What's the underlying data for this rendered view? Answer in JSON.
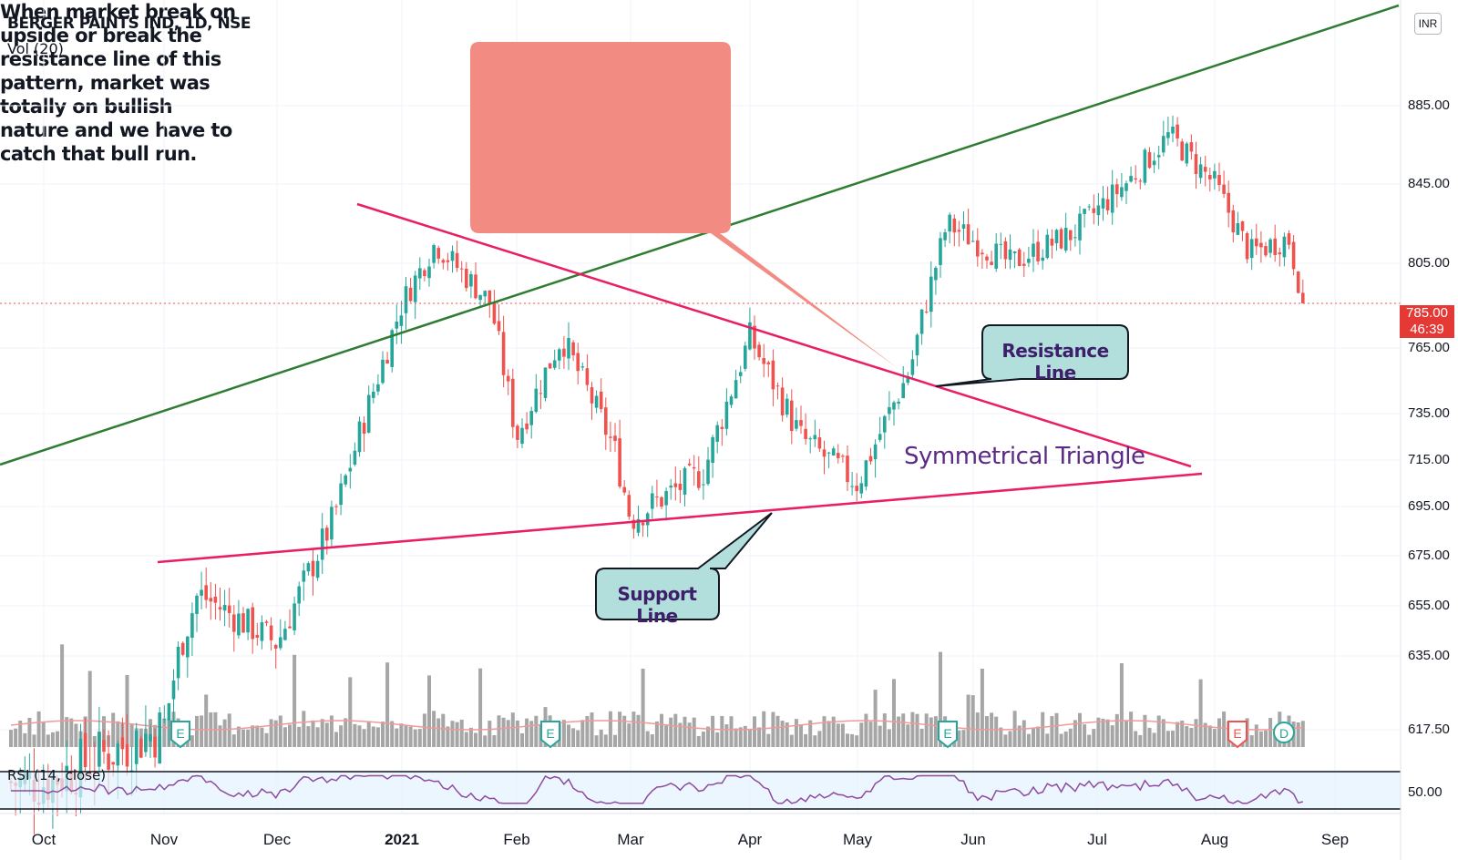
{
  "header": {
    "title": "BERGER PAINTS IND, 1D, NSE",
    "volume_label": "Vol (20)",
    "currency": "INR"
  },
  "price_tag": {
    "price": "785.00",
    "countdown": "46:39"
  },
  "annotations": {
    "note": "When market break on upside or break the resistance line of this pattern, market was totally on bullish nature and we have to catch that bull run.",
    "resistance": "Resistance Line",
    "support": "Support Line",
    "pattern": "Symmetrical Triangle"
  },
  "rsi": {
    "title": "RSI (14, close)",
    "level_label": "50.00"
  },
  "event_markers": [
    "E",
    "E",
    "E",
    "E",
    "D"
  ],
  "colors": {
    "up": "#26a69a",
    "down": "#ef5350",
    "trend_green": "#2e7d32",
    "triangle_pink": "#e91e63",
    "note_bg": "#f28b82",
    "tag_bg": "#b2dfdb",
    "rsi_line": "#8e4b9e",
    "volume_bar": "#a6a6a6",
    "price_tag": "#e53935"
  },
  "chart_data": {
    "type": "candlestick",
    "symbol": "BERGER PAINTS IND",
    "interval": "1D",
    "exchange": "NSE",
    "y_axis": {
      "ticks": [
        "617.50",
        "635.00",
        "655.00",
        "675.00",
        "695.00",
        "715.00",
        "735.00",
        "765.00",
        "785.00",
        "805.00",
        "845.00",
        "885.00"
      ]
    },
    "x_axis": {
      "ticks": [
        "Oct",
        "Nov",
        "Dec",
        "2021",
        "Feb",
        "Mar",
        "Apr",
        "May",
        "Jun",
        "Jul",
        "Aug",
        "Sep"
      ]
    },
    "last_price": 785.0,
    "approx_close_path": [
      {
        "date": "2020-10-01",
        "close": 605
      },
      {
        "date": "2020-11-01",
        "close": 618
      },
      {
        "date": "2020-11-10",
        "close": 660
      },
      {
        "date": "2020-12-01",
        "close": 640
      },
      {
        "date": "2020-12-15",
        "close": 690
      },
      {
        "date": "2021-01-01",
        "close": 785
      },
      {
        "date": "2021-01-10",
        "close": 815
      },
      {
        "date": "2021-01-25",
        "close": 785
      },
      {
        "date": "2021-02-01",
        "close": 725
      },
      {
        "date": "2021-02-12",
        "close": 770
      },
      {
        "date": "2021-02-25",
        "close": 720
      },
      {
        "date": "2021-03-01",
        "close": 690
      },
      {
        "date": "2021-03-20",
        "close": 710
      },
      {
        "date": "2021-04-01",
        "close": 770
      },
      {
        "date": "2021-04-15",
        "close": 725
      },
      {
        "date": "2021-05-01",
        "close": 705
      },
      {
        "date": "2021-05-15",
        "close": 755
      },
      {
        "date": "2021-05-25",
        "close": 825
      },
      {
        "date": "2021-06-10",
        "close": 805
      },
      {
        "date": "2021-06-25",
        "close": 820
      },
      {
        "date": "2021-07-10",
        "close": 848
      },
      {
        "date": "2021-07-20",
        "close": 870
      },
      {
        "date": "2021-08-01",
        "close": 845
      },
      {
        "date": "2021-08-10",
        "close": 810
      },
      {
        "date": "2021-08-20",
        "close": 818
      },
      {
        "date": "2021-08-24",
        "close": 785
      }
    ],
    "trendlines": [
      {
        "name": "Resistance Line",
        "from": {
          "date": "2020-12-20",
          "price": 835
        },
        "to": {
          "date": "2021-07-25",
          "price": 712
        }
      },
      {
        "name": "Support Line",
        "from": {
          "date": "2020-11-01",
          "price": 670
        },
        "to": {
          "date": "2021-07-25",
          "price": 708
        }
      }
    ],
    "indicators": [
      {
        "name": "Vol (20)"
      },
      {
        "name": "RSI (14, close)",
        "level": 50.0
      }
    ]
  }
}
